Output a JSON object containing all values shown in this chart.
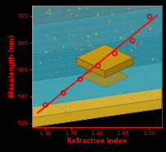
{
  "x_data": [
    1.3,
    1.333,
    1.367,
    1.4,
    1.433,
    1.467,
    1.5
  ],
  "y_data": [
    634,
    643,
    653,
    663,
    672,
    682,
    700
  ],
  "xlim": [
    1.275,
    1.525
  ],
  "ylim": [
    617,
    708
  ],
  "xticks": [
    1.3,
    1.35,
    1.4,
    1.45,
    1.5
  ],
  "yticks": [
    620,
    640,
    660,
    680,
    700
  ],
  "xlabel": "Refractive Index",
  "ylabel": "Wavelength (nm)",
  "axis_color": "#ff0000",
  "tick_color": "#ff0000",
  "label_color": "#ff0000",
  "point_color": "#dd0000",
  "line_color": "#ff0000",
  "bg_color": "#000000",
  "layer_colors": {
    "substrate_bottom": "#c8a020",
    "substrate_top": "#d4b030",
    "liquid_low": "#4ab8c8",
    "liquid_mid": "#38a8bc",
    "liquid_high": "#50b8cc",
    "top_glass": "#70ccd8",
    "nanoplate_top": "#c8980c",
    "nanoplate_side": "#9a7208",
    "nanoplate_front": "#b08010",
    "grid_line": "#80d0dc",
    "border": "#a0d4dc"
  },
  "molecules_seed": 42,
  "n_molecules_upper": 200,
  "n_molecules_lower": 80
}
